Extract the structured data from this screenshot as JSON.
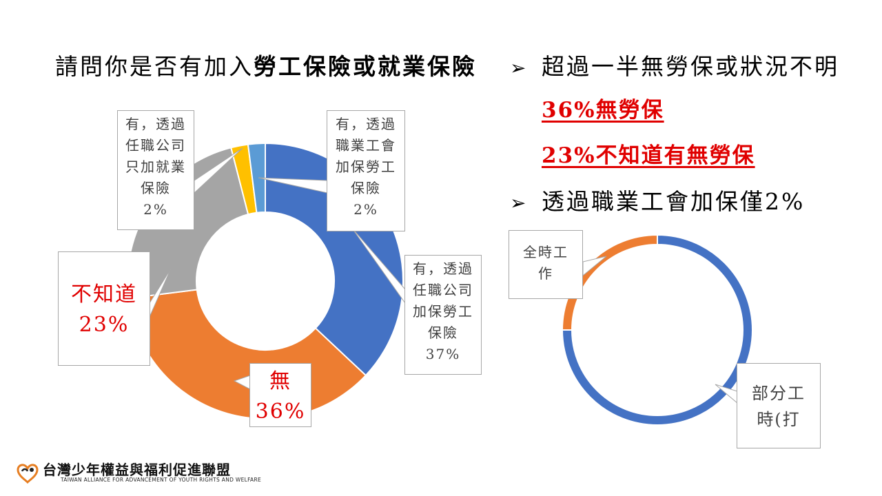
{
  "title": {
    "part1": "請問你是否有加入",
    "part2": "勞工保險或就業保險"
  },
  "bullets": {
    "b1_arrow": "➢",
    "b1_text": "超過一半無勞保或狀況不明",
    "hl1": "36%無勞保",
    "hl2": "23%不知道有無勞保",
    "b2_arrow": "➢",
    "b2_text": "透過職業工會加保僅2%"
  },
  "chart_data": [
    {
      "type": "pie",
      "donut": true,
      "slices": [
        {
          "label": "有，透過任職公司加保勞工保險",
          "value": 37,
          "color": "#4472c4"
        },
        {
          "label": "無",
          "value": 36,
          "color": "#ed7d31"
        },
        {
          "label": "不知道",
          "value": 23,
          "color": "#a5a5a5"
        },
        {
          "label": "有，透過任職公司只加就業保險",
          "value": 2,
          "color": "#ffc000"
        },
        {
          "label": "有，透過職業工會加保勞工保險",
          "value": 2,
          "color": "#5b9bd5"
        }
      ],
      "callouts": {
        "company_labor": [
          "有，透過",
          "任職公司",
          "加保勞工",
          "保險",
          "37%"
        ],
        "none": [
          "無",
          "36%"
        ],
        "unknown": [
          "不知道",
          "23%"
        ],
        "employment_only": [
          "有，透過",
          "任職公司",
          "只加就業",
          "保險",
          "2%"
        ],
        "union": [
          "有，透過",
          "職業工會",
          "加保勞工",
          "保險",
          "2%"
        ]
      }
    },
    {
      "type": "pie",
      "donut": true,
      "slices": [
        {
          "label": "部分工時(打",
          "value": 75,
          "color": "#4472c4"
        },
        {
          "label": "全時工作",
          "value": 25,
          "color": "#ed7d31"
        }
      ],
      "callouts": {
        "parttime": [
          "部分工",
          "時(打"
        ],
        "fulltime": [
          "全時工",
          "作"
        ]
      }
    }
  ],
  "logo": {
    "name": "台灣少年權益與福利促進聯盟",
    "sub": "TAIWAN ALLIANCE FOR ADVANCEMENT OF YOUTH RIGHTS AND WELFARE"
  }
}
